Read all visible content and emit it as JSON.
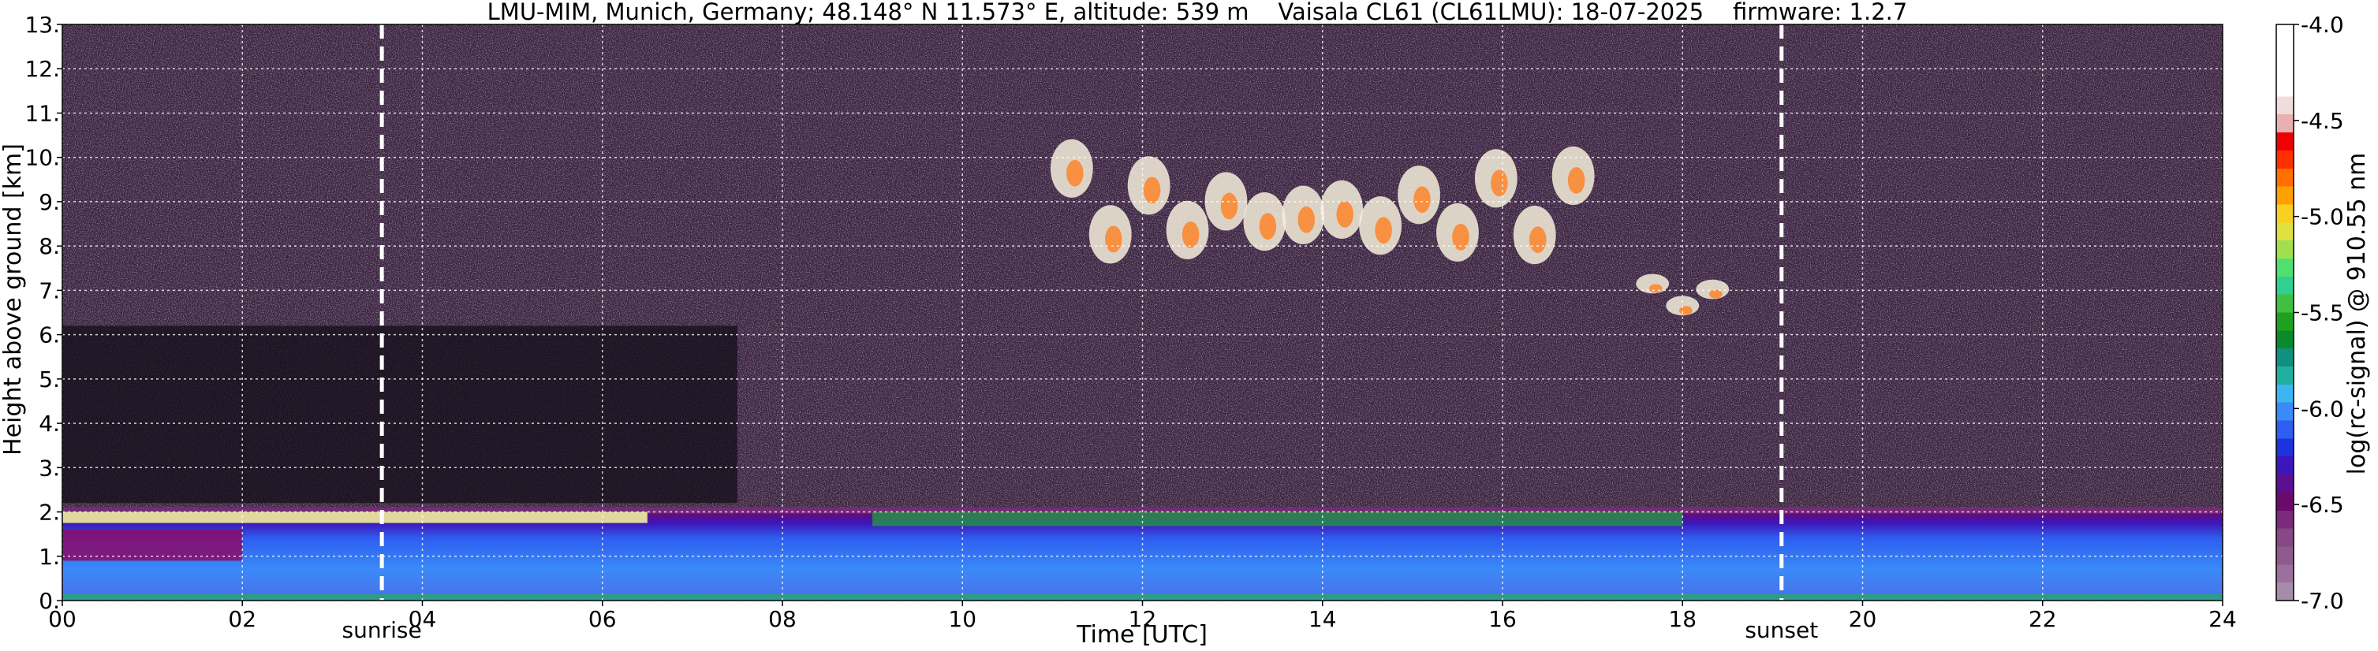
{
  "chart_data": {
    "type": "heatmap",
    "title": "LMU-MIM, Munich, Germany; 48.148° N 11.573° E, altitude: 539 m    Vaisala CL61 (CL61LMU): 18-07-2025    firmware: 1.2.7",
    "xlabel": "Time [UTC]",
    "ylabel": "Height above ground [km]",
    "xlim": [
      0,
      24
    ],
    "ylim": [
      0,
      13
    ],
    "x_ticks": [
      "00",
      "02",
      "04",
      "06",
      "08",
      "10",
      "12",
      "14",
      "16",
      "18",
      "20",
      "22",
      "24"
    ],
    "y_ticks": [
      "0.",
      "1.",
      "2.",
      "3.",
      "4.",
      "5.",
      "6.",
      "7.",
      "8.",
      "9.",
      "10.",
      "11.",
      "12.",
      "13."
    ],
    "grid": true,
    "colorbar": {
      "label": "log(rc-signal) @ 910.55 nm",
      "range": [
        -7.0,
        -4.0
      ],
      "ticks": [
        "-4.0",
        "-4.5",
        "-5.0",
        "-5.5",
        "-6.0",
        "-6.5",
        "-7.0"
      ],
      "levels_bottom_to_top": [
        "#a88ba8",
        "#9c709c",
        "#8f5a8f",
        "#864886",
        "#7a2a7a",
        "#6b0a6b",
        "#5a1090",
        "#3e15b8",
        "#1e32e0",
        "#2e5ef0",
        "#3a8af8",
        "#3cb6f0",
        "#20b0a0",
        "#109080",
        "#0a8a2a",
        "#20a020",
        "#40c040",
        "#30d090",
        "#50e070",
        "#a0e050",
        "#e0e040",
        "#f8d020",
        "#ffa000",
        "#ff7000",
        "#ff3000",
        "#f00000",
        "#e8b0b0",
        "#f0dcdc",
        "#ffffff",
        "#ffffff",
        "#ffffff",
        "#ffffff"
      ]
    },
    "sun_events": [
      {
        "label": "sunrise",
        "time_utc": 3.55
      },
      {
        "label": "sunset",
        "time_utc": 19.1
      }
    ],
    "features": [
      {
        "kind": "boundary_layer",
        "t0": 0,
        "t1": 24,
        "top_km": 2.0
      },
      {
        "kind": "cirrus_cloud",
        "t0": 11.0,
        "t1": 17.0,
        "bottom_km": 7.5,
        "top_km": 10.5
      },
      {
        "kind": "cloud",
        "t0": 17.5,
        "t1": 18.5,
        "bottom_km": 6.4,
        "top_km": 7.4
      }
    ]
  }
}
